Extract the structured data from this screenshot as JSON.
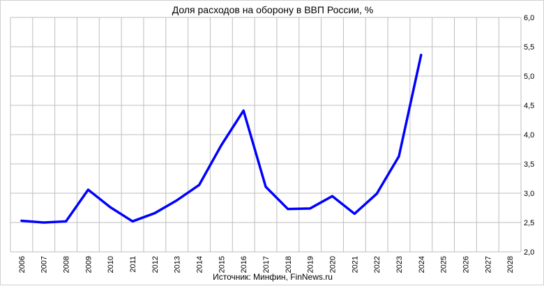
{
  "chart_data": {
    "type": "line",
    "title": "Доля расходов на оборону в ВВП России, %",
    "source": "Источник: Минфин, FinNews.ru",
    "categories": [
      "2006",
      "2007",
      "2008",
      "2009",
      "2010",
      "2011",
      "2012",
      "2013",
      "2014",
      "2015",
      "2016",
      "2017",
      "2018",
      "2019",
      "2020",
      "2021",
      "2022",
      "2023",
      "2024",
      "2025",
      "2026",
      "2027",
      "2028"
    ],
    "series": [
      {
        "values": [
          2.53,
          2.5,
          2.52,
          3.06,
          2.76,
          2.52,
          2.66,
          2.88,
          3.14,
          3.82,
          4.41,
          3.11,
          2.73,
          2.74,
          2.95,
          2.65,
          2.99,
          3.63,
          5.36,
          null,
          null,
          null,
          null
        ],
        "color": "#0000ff"
      }
    ],
    "y_ticks": [
      "2,0",
      "2,5",
      "3,0",
      "3,5",
      "4,0",
      "4,5",
      "5,0",
      "5,5",
      "6,0"
    ],
    "ylim": [
      2.0,
      6.0
    ],
    "y_axis_side": "right",
    "grid": true,
    "legend": "none"
  }
}
